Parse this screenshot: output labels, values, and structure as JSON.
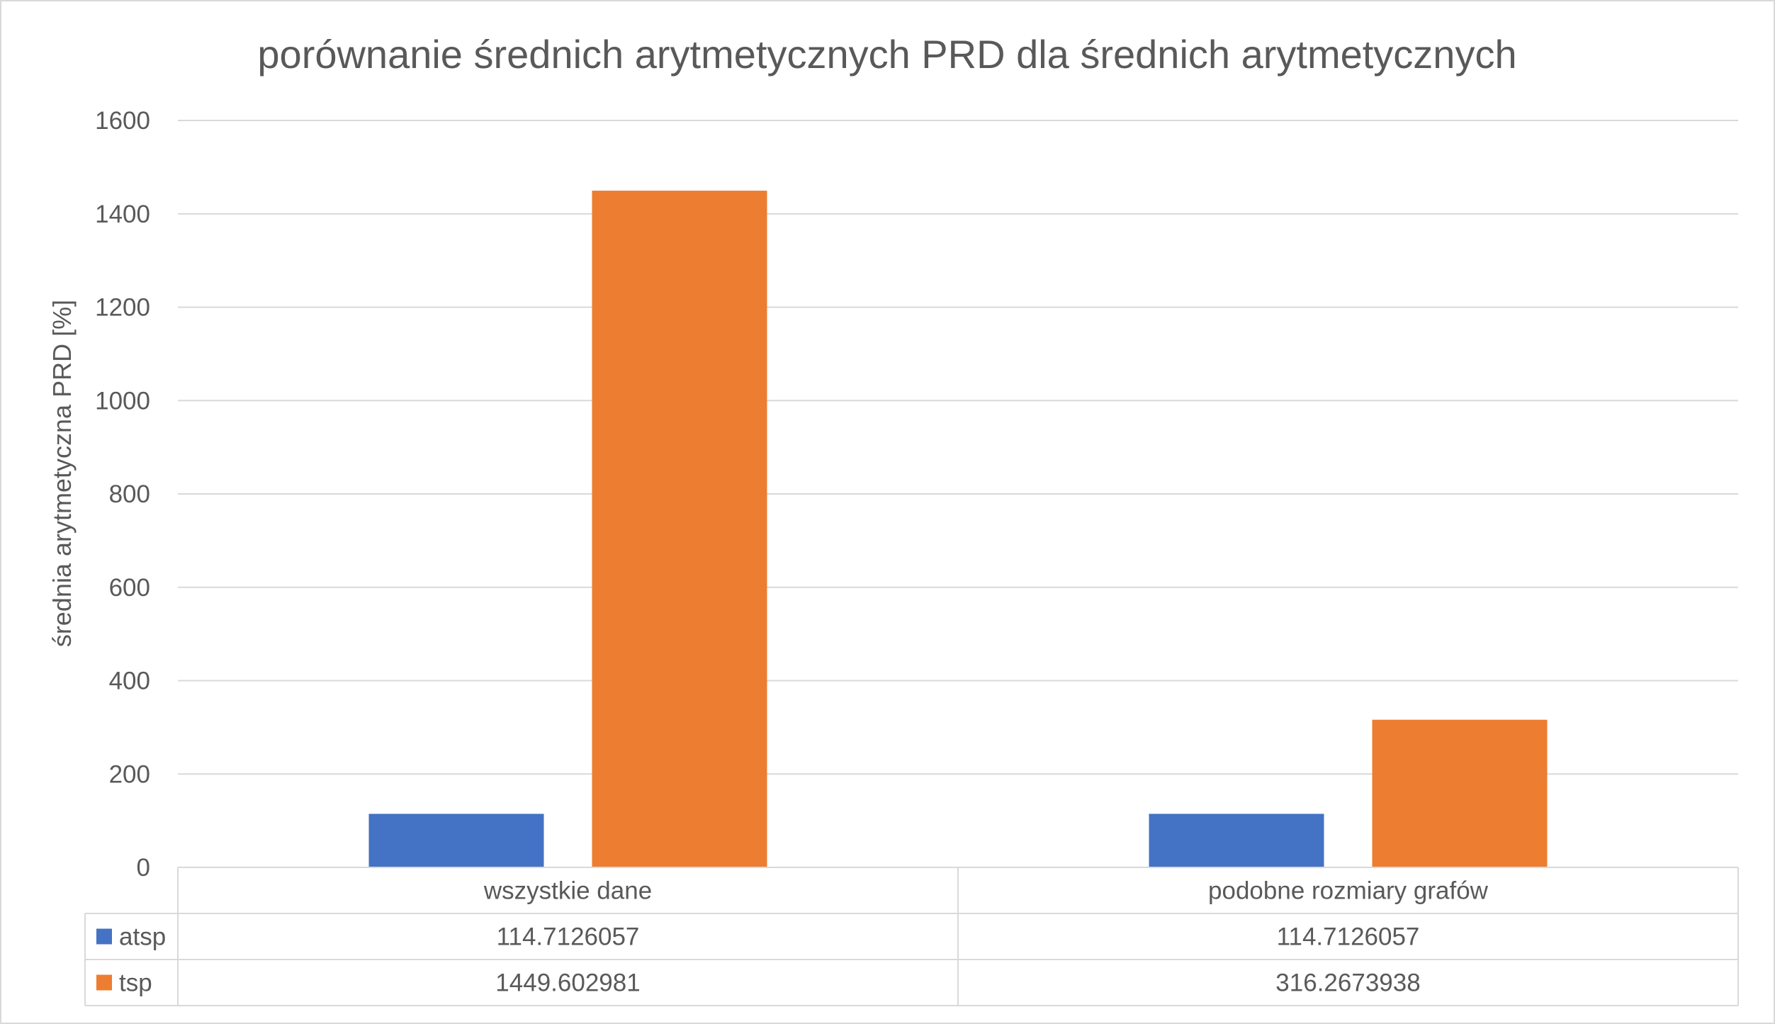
{
  "chart_data": {
    "type": "bar",
    "title": "porównanie średnich arytmetycznych PRD dla średnich arytmetycznych",
    "ylabel": "średnia arytmetyczna PRD [%]",
    "xlabel": "",
    "categories": [
      "wszystkie dane",
      "podobne rozmiary grafów"
    ],
    "series": [
      {
        "name": "atsp",
        "color": "#4472C4",
        "values": [
          114.7126057,
          114.7126057
        ],
        "display": [
          "114.7126057",
          "114.7126057"
        ]
      },
      {
        "name": "tsp",
        "color": "#ED7D31",
        "values": [
          1449.602981,
          316.2673938
        ],
        "display": [
          "1449.602981",
          "316.2673938"
        ]
      }
    ],
    "ylim": [
      0,
      1600
    ],
    "yticks": [
      0,
      200,
      400,
      600,
      800,
      1000,
      1200,
      1400,
      1600
    ],
    "grid": true,
    "legend": "data-table"
  }
}
